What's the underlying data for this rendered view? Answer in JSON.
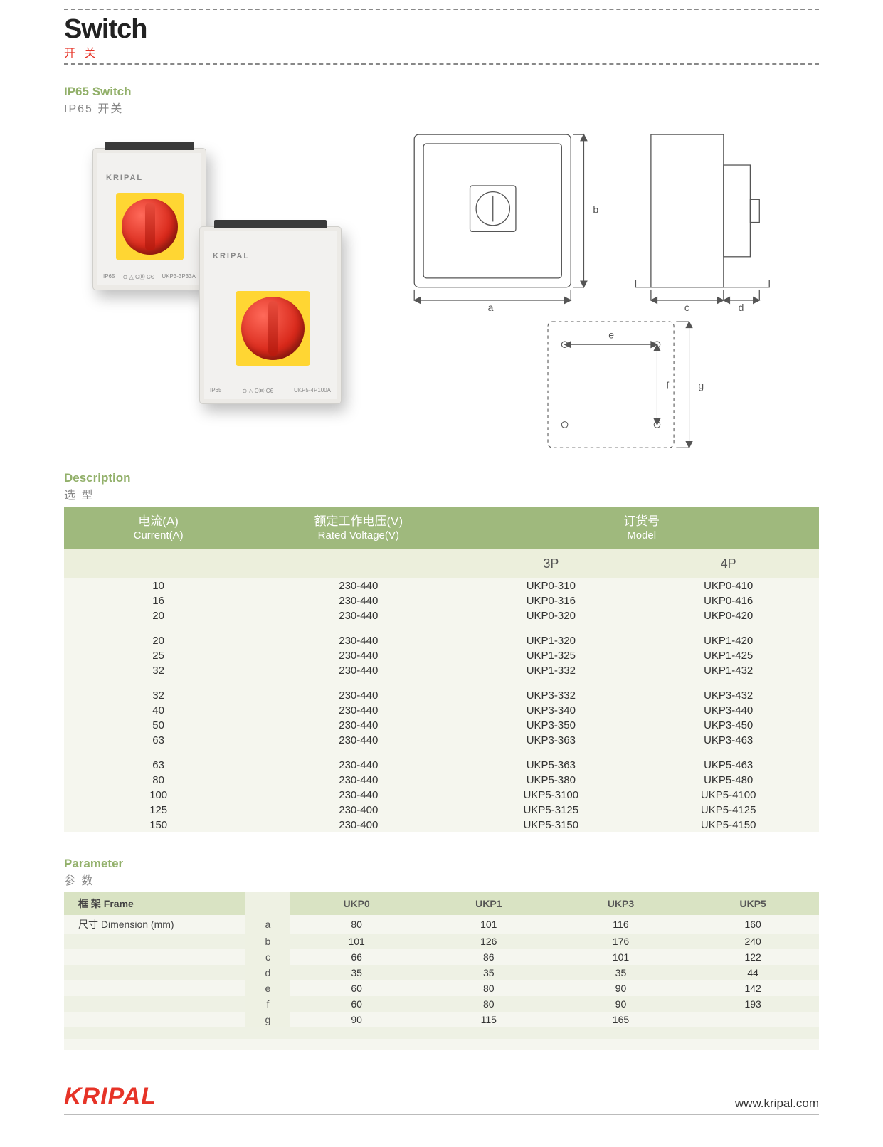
{
  "colors": {
    "accent_red": "#e63327",
    "accent_green": "#92b06a",
    "table_head_green": "#9fb97d",
    "table_sub_bg": "#ecefdc",
    "table_body_bg": "#f5f6ee",
    "param_head_bg": "#d9e3c3",
    "knob_yellow": "#ffd633",
    "knob_red": "#d8281a"
  },
  "header": {
    "title_en": "Switch",
    "title_cn": "开 关"
  },
  "section_ip65": {
    "title_en": "IP65 Switch",
    "title_cn": "IP65 开关"
  },
  "product_photo": {
    "brand": "KRIPAL",
    "unit_a": {
      "ip": "IP65",
      "marks": "⊙ △ CⒷ C€",
      "model": "UKP3-3P33A"
    },
    "unit_b": {
      "ip": "IP65",
      "marks": "⊙ △ CⒷ C€",
      "model": "UKP5-4P100A"
    }
  },
  "drawing_labels": {
    "a": "a",
    "b": "b",
    "c": "c",
    "d": "d",
    "e": "e",
    "f": "f",
    "g": "g"
  },
  "description": {
    "title_en": "Description",
    "title_cn": "选 型",
    "columns": {
      "current": {
        "cn": "电流(A)",
        "en": "Current(A)"
      },
      "voltage": {
        "cn": "额定工作电压(V)",
        "en": "Rated Voltage(V)"
      },
      "model": {
        "cn": "订货号",
        "en": "Model"
      },
      "model_3p": "3P",
      "model_4p": "4P"
    },
    "groups": [
      {
        "rows": [
          {
            "current": "10",
            "voltage": "230-440",
            "m3": "UKP0-310",
            "m4": "UKP0-410"
          },
          {
            "current": "16",
            "voltage": "230-440",
            "m3": "UKP0-316",
            "m4": "UKP0-416"
          },
          {
            "current": "20",
            "voltage": "230-440",
            "m3": "UKP0-320",
            "m4": "UKP0-420"
          }
        ]
      },
      {
        "rows": [
          {
            "current": "20",
            "voltage": "230-440",
            "m3": "UKP1-320",
            "m4": "UKP1-420"
          },
          {
            "current": "25",
            "voltage": "230-440",
            "m3": "UKP1-325",
            "m4": "UKP1-425"
          },
          {
            "current": "32",
            "voltage": "230-440",
            "m3": "UKP1-332",
            "m4": "UKP1-432"
          }
        ]
      },
      {
        "rows": [
          {
            "current": "32",
            "voltage": "230-440",
            "m3": "UKP3-332",
            "m4": "UKP3-432"
          },
          {
            "current": "40",
            "voltage": "230-440",
            "m3": "UKP3-340",
            "m4": "UKP3-440"
          },
          {
            "current": "50",
            "voltage": "230-440",
            "m3": "UKP3-350",
            "m4": "UKP3-450"
          },
          {
            "current": "63",
            "voltage": "230-440",
            "m3": "UKP3-363",
            "m4": "UKP3-463"
          }
        ]
      },
      {
        "rows": [
          {
            "current": "63",
            "voltage": "230-440",
            "m3": "UKP5-363",
            "m4": "UKP5-463"
          },
          {
            "current": "80",
            "voltage": "230-440",
            "m3": "UKP5-380",
            "m4": "UKP5-480"
          },
          {
            "current": "100",
            "voltage": "230-440",
            "m3": "UKP5-3100",
            "m4": "UKP5-4100"
          },
          {
            "current": "125",
            "voltage": "230-400",
            "m3": "UKP5-3125",
            "m4": "UKP5-4125"
          },
          {
            "current": "150",
            "voltage": "230-400",
            "m3": "UKP5-3150",
            "m4": "UKP5-4150"
          }
        ]
      }
    ]
  },
  "parameter": {
    "title_en": "Parameter",
    "title_cn": "参 数",
    "frame_label": "框 架 Frame",
    "dim_label": "尺寸 Dimension (mm)",
    "frames": [
      "UKP0",
      "UKP1",
      "UKP3",
      "UKP5"
    ],
    "dims": [
      {
        "k": "a",
        "v": [
          "80",
          "101",
          "116",
          "160"
        ]
      },
      {
        "k": "b",
        "v": [
          "101",
          "126",
          "176",
          "240"
        ]
      },
      {
        "k": "c",
        "v": [
          "66",
          "86",
          "101",
          "122"
        ]
      },
      {
        "k": "d",
        "v": [
          "35",
          "35",
          "35",
          "44"
        ]
      },
      {
        "k": "e",
        "v": [
          "60",
          "80",
          "90",
          "142"
        ]
      },
      {
        "k": "f",
        "v": [
          "60",
          "80",
          "90",
          "193"
        ]
      },
      {
        "k": "g",
        "v": [
          "90",
          "115",
          "165",
          ""
        ]
      }
    ]
  },
  "footer": {
    "logo": "KRIPAL",
    "url": "www.kripal.com"
  }
}
